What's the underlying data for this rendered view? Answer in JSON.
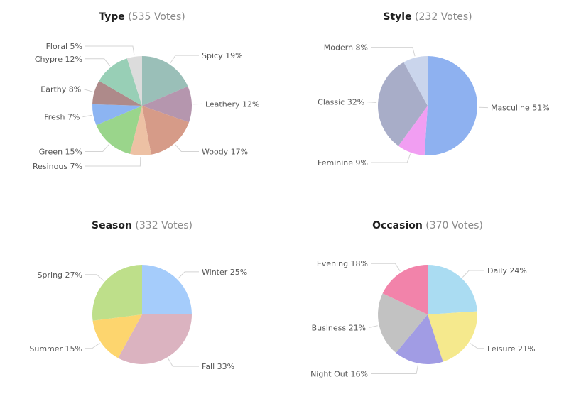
{
  "chart_data": [
    {
      "type": "pie",
      "title": "Type",
      "subtitle": "(535 Votes)",
      "labels": [
        "Spicy 19%",
        "Leathery 12%",
        "Woody 17%",
        "Resinous 7%",
        "Green 15%",
        "Fresh 7%",
        "Earthy 8%",
        "Chypre 12%",
        "Floral 5%"
      ],
      "categories": [
        "Spicy",
        "Leathery",
        "Woody",
        "Resinous",
        "Green",
        "Fresh",
        "Earthy",
        "Chypre",
        "Floral"
      ],
      "values": [
        19,
        12,
        17,
        7,
        15,
        7,
        8,
        12,
        5
      ],
      "colors": [
        "#9ABFB8",
        "#B596AE",
        "#D69B88",
        "#EDC1A4",
        "#9AD58B",
        "#8CB4F2",
        "#AE8A8A",
        "#98CFB6",
        "#DCDCDC"
      ]
    },
    {
      "type": "pie",
      "title": "Style",
      "subtitle": "(232 Votes)",
      "labels": [
        "Masculine 51%",
        "Feminine 9%",
        "Classic 32%",
        "Modern 8%"
      ],
      "categories": [
        "Masculine",
        "Feminine",
        "Classic",
        "Modern"
      ],
      "values": [
        51,
        9,
        32,
        8
      ],
      "colors": [
        "#8EB1F0",
        "#F19EF2",
        "#A8ADC8",
        "#CAD5EC"
      ]
    },
    {
      "type": "pie",
      "title": "Season",
      "subtitle": "(332 Votes)",
      "labels": [
        "Winter 25%",
        "Fall 33%",
        "Summer 15%",
        "Spring 27%"
      ],
      "categories": [
        "Winter",
        "Fall",
        "Summer",
        "Spring"
      ],
      "values": [
        25,
        33,
        15,
        27
      ],
      "colors": [
        "#A5CCFB",
        "#DBB3C0",
        "#FDD56E",
        "#BEDF8A"
      ]
    },
    {
      "type": "pie",
      "title": "Occasion",
      "subtitle": "(370 Votes)",
      "labels": [
        "Daily 24%",
        "Leisure 21%",
        "Night Out 16%",
        "Business 21%",
        "Evening 18%"
      ],
      "categories": [
        "Daily",
        "Leisure",
        "Night Out",
        "Business",
        "Evening"
      ],
      "values": [
        24,
        21,
        16,
        21,
        18
      ],
      "colors": [
        "#AADCF2",
        "#F5E98D",
        "#A19CE4",
        "#C2C2C2",
        "#F283AA"
      ]
    }
  ]
}
